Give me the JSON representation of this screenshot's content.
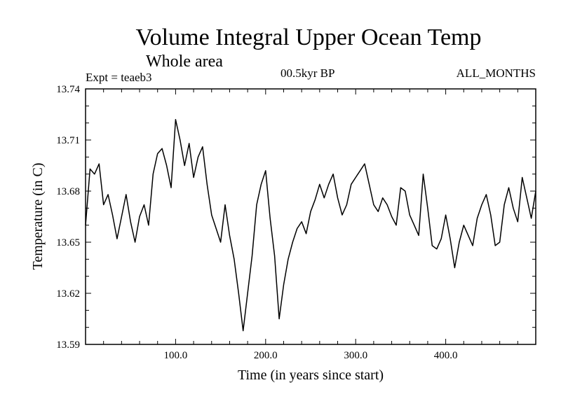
{
  "chart_data": {
    "type": "line",
    "title": "Volume Integral Upper Ocean Temp",
    "subtitle": "Whole area",
    "expt_label": "Expt = teaeb3",
    "period_label": "00.5kyr BP",
    "months_label": "ALL_MONTHS",
    "xlabel": "Time (in years since start)",
    "ylabel": "Temperature (in C)",
    "xlim": [
      0,
      500
    ],
    "ylim": [
      13.59,
      13.74
    ],
    "x_ticks": [
      100,
      200,
      300,
      400
    ],
    "x_tick_labels": [
      "100.0",
      "200.0",
      "300.0",
      "400.0"
    ],
    "y_ticks": [
      13.59,
      13.62,
      13.65,
      13.68,
      13.71,
      13.74
    ],
    "y_tick_labels": [
      "13.59",
      "13.62",
      "13.65",
      "13.68",
      "13.71",
      "13.74"
    ],
    "series": [
      {
        "name": "temperature",
        "x": [
          0,
          5,
          10,
          15,
          20,
          25,
          30,
          35,
          40,
          45,
          50,
          55,
          60,
          65,
          70,
          75,
          80,
          85,
          90,
          95,
          100,
          105,
          110,
          115,
          120,
          125,
          130,
          135,
          140,
          145,
          150,
          155,
          160,
          165,
          170,
          175,
          180,
          185,
          190,
          195,
          200,
          205,
          210,
          215,
          220,
          225,
          230,
          235,
          240,
          245,
          250,
          255,
          260,
          265,
          270,
          275,
          280,
          285,
          290,
          295,
          300,
          305,
          310,
          315,
          320,
          325,
          330,
          335,
          340,
          345,
          350,
          355,
          360,
          365,
          370,
          375,
          380,
          385,
          390,
          395,
          400,
          405,
          410,
          415,
          420,
          425,
          430,
          435,
          440,
          445,
          450,
          455,
          460,
          465,
          470,
          475,
          480,
          485,
          490,
          495,
          500
        ],
        "values": [
          13.66,
          13.693,
          13.69,
          13.696,
          13.672,
          13.678,
          13.666,
          13.652,
          13.665,
          13.678,
          13.662,
          13.65,
          13.665,
          13.672,
          13.66,
          13.69,
          13.702,
          13.705,
          13.695,
          13.682,
          13.722,
          13.71,
          13.695,
          13.708,
          13.688,
          13.7,
          13.706,
          13.684,
          13.666,
          13.658,
          13.65,
          13.672,
          13.654,
          13.64,
          13.62,
          13.598,
          13.62,
          13.642,
          13.672,
          13.684,
          13.692,
          13.664,
          13.642,
          13.605,
          13.625,
          13.64,
          13.65,
          13.658,
          13.662,
          13.655,
          13.668,
          13.675,
          13.684,
          13.676,
          13.684,
          13.69,
          13.676,
          13.666,
          13.672,
          13.684,
          13.688,
          13.692,
          13.696,
          13.684,
          13.672,
          13.668,
          13.676,
          13.672,
          13.665,
          13.66,
          13.682,
          13.68,
          13.666,
          13.66,
          13.654,
          13.69,
          13.67,
          13.648,
          13.646,
          13.652,
          13.666,
          13.652,
          13.635,
          13.65,
          13.66,
          13.654,
          13.648,
          13.664,
          13.672,
          13.678,
          13.666,
          13.648,
          13.65,
          13.672,
          13.682,
          13.67,
          13.662,
          13.688,
          13.676,
          13.664,
          13.68
        ]
      }
    ]
  }
}
